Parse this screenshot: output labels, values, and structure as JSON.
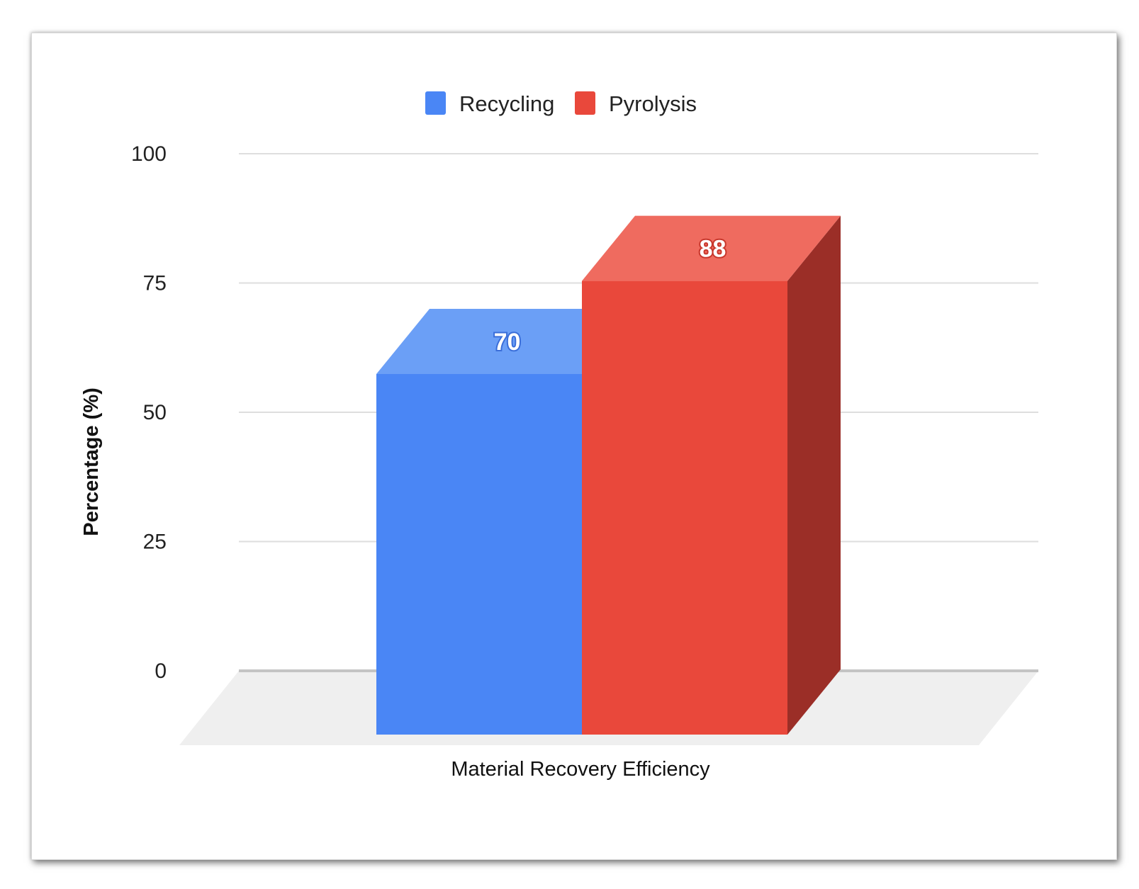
{
  "chart_data": {
    "type": "bar",
    "categories": [
      "Material Recovery Efficiency"
    ],
    "series": [
      {
        "name": "Recycling",
        "values": [
          70
        ],
        "color": "#4a86f5",
        "top_color": "#6b9ff6",
        "side_color": "#2f5fb8",
        "label_stroke": "#3a6ed9"
      },
      {
        "name": "Pyrolysis",
        "values": [
          88
        ],
        "color": "#e9483b",
        "top_color": "#ef6b5f",
        "side_color": "#9b2e27",
        "label_stroke": "#c8372c"
      }
    ],
    "xlabel": "Material Recovery Efficiency",
    "ylabel": "Percentage (%)",
    "ylim": [
      0,
      100
    ],
    "yticks": [
      "0",
      "25",
      "50",
      "75",
      "100"
    ],
    "grid": true,
    "legend_position": "top-center",
    "style": "3d"
  }
}
